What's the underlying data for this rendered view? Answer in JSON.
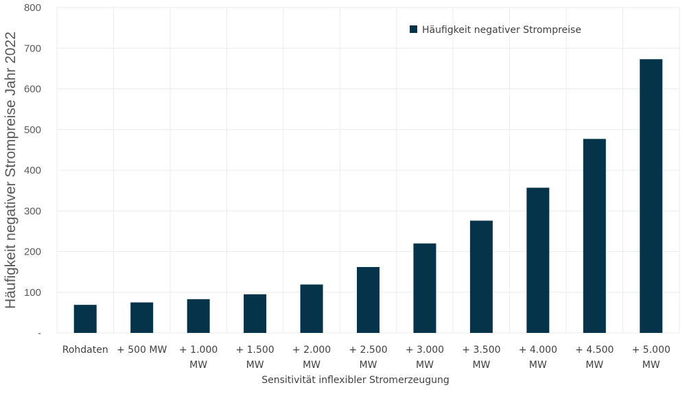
{
  "chart_data": {
    "type": "bar",
    "categories": [
      [
        "Rohdaten"
      ],
      [
        "+ 500 MW"
      ],
      [
        "+ 1.000",
        "MW"
      ],
      [
        "+ 1.500",
        "MW"
      ],
      [
        "+ 2.000",
        "MW"
      ],
      [
        "+ 2.500",
        "MW"
      ],
      [
        "+ 3.000",
        "MW"
      ],
      [
        "+ 3.500",
        "MW"
      ],
      [
        "+ 4.000",
        "MW"
      ],
      [
        "+ 4.500",
        "MW"
      ],
      [
        "+ 5.000",
        "MW"
      ]
    ],
    "series": [
      {
        "name": "Häufigkeit negativer Strompreise",
        "color": "#05344A",
        "values": [
          69,
          75,
          83,
          95,
          119,
          162,
          220,
          276,
          357,
          477,
          673
        ]
      }
    ],
    "xlabel": "Sensitivität inflexibler Stromerzeugung",
    "ylabel": "Häufigkeit negativer Strompreise Jahr 2022",
    "ylim": [
      0,
      800
    ],
    "yticks": [
      "-",
      "100",
      "200",
      "300",
      "400",
      "500",
      "600",
      "700",
      "800"
    ],
    "grid": true,
    "gridcolor": "#EBEBEB",
    "legend": "top-center"
  }
}
